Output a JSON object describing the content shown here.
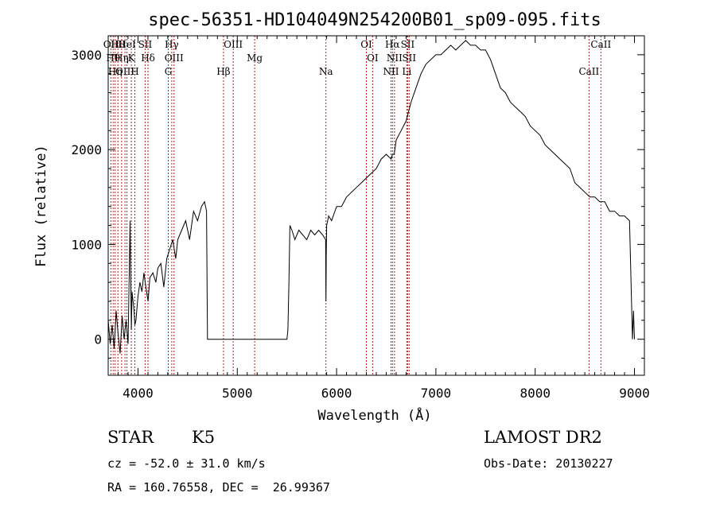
{
  "chart_data": {
    "type": "line",
    "title": "spec-56351-HD104049N254200B01_sp09-095.fits",
    "xlabel": "Wavelength (Å)",
    "ylabel": "Flux (relative)",
    "xlim": [
      3700,
      9100
    ],
    "ylim": [
      -380,
      3200
    ],
    "x_ticks": [
      4000,
      5000,
      6000,
      7000,
      8000,
      9000
    ],
    "y_ticks": [
      0,
      1000,
      2000,
      3000
    ],
    "grid": false,
    "line_color": "#000000",
    "marker_color": "#b22222",
    "series": [
      {
        "x": [
          3700,
          3720,
          3740,
          3760,
          3780,
          3800,
          3820,
          3840,
          3860,
          3880,
          3900,
          3920,
          3933,
          3940,
          3960,
          3968,
          3980,
          4000,
          4020,
          4040,
          4060,
          4080,
          4101,
          4120,
          4150,
          4180,
          4200,
          4230,
          4260,
          4290,
          4320,
          4350,
          4380,
          4400,
          4440,
          4480,
          4520,
          4560,
          4600,
          4640,
          4670,
          4690,
          4700,
          4710,
          4800,
          4900,
          5000,
          5100,
          5200,
          5300,
          5400,
          5500,
          5510,
          5520,
          5530,
          5550,
          5580,
          5620,
          5660,
          5700,
          5740,
          5780,
          5820,
          5860,
          5890,
          5893,
          5896,
          5900,
          5920,
          5950,
          6000,
          6050,
          6100,
          6150,
          6200,
          6250,
          6300,
          6350,
          6400,
          6450,
          6500,
          6550,
          6563,
          6580,
          6600,
          6650,
          6700,
          6750,
          6800,
          6850,
          6900,
          6950,
          7000,
          7050,
          7100,
          7150,
          7200,
          7250,
          7300,
          7350,
          7400,
          7450,
          7500,
          7550,
          7600,
          7650,
          7700,
          7750,
          7800,
          7850,
          7900,
          7950,
          8000,
          8050,
          8100,
          8150,
          8200,
          8250,
          8300,
          8350,
          8400,
          8450,
          8500,
          8550,
          8600,
          8650,
          8700,
          8750,
          8800,
          8850,
          8900,
          8950,
          8980,
          8990,
          9000
        ],
        "y": [
          200,
          -50,
          150,
          -100,
          300,
          50,
          -150,
          250,
          0,
          200,
          -50,
          1250,
          100,
          500,
          300,
          150,
          200,
          450,
          600,
          500,
          700,
          550,
          400,
          650,
          700,
          600,
          750,
          800,
          550,
          850,
          950,
          1050,
          850,
          1050,
          1150,
          1250,
          1050,
          1350,
          1250,
          1400,
          1450,
          1350,
          0,
          0,
          0,
          0,
          0,
          0,
          0,
          0,
          0,
          0,
          100,
          600,
          1200,
          1150,
          1050,
          1150,
          1100,
          1050,
          1150,
          1100,
          1150,
          1100,
          1050,
          400,
          900,
          1200,
          1300,
          1250,
          1400,
          1400,
          1500,
          1550,
          1600,
          1650,
          1700,
          1750,
          1800,
          1900,
          1950,
          1900,
          1950,
          1950,
          2100,
          2200,
          2300,
          2500,
          2650,
          2800,
          2900,
          2950,
          3000,
          3000,
          3050,
          3100,
          3050,
          3100,
          3150,
          3100,
          3100,
          3050,
          3050,
          2950,
          2800,
          2650,
          2600,
          2500,
          2450,
          2400,
          2350,
          2250,
          2200,
          2150,
          2050,
          2000,
          1950,
          1900,
          1850,
          1800,
          1650,
          1600,
          1550,
          1500,
          1500,
          1450,
          1450,
          1350,
          1350,
          1300,
          1300,
          1250,
          0,
          300,
          0
        ]
      }
    ],
    "lines": [
      {
        "x": 3727,
        "label": "OII"
      },
      {
        "x": 3750,
        "label": "Hθ"
      },
      {
        "x": 3770,
        "label": "Hη"
      },
      {
        "x": 3798,
        "label": "Hθ"
      },
      {
        "x": 3835,
        "label": "Hη"
      },
      {
        "x": 3869,
        "label": "OIII"
      },
      {
        "x": 3889,
        "label": "HeI"
      },
      {
        "x": 3933,
        "label": "K"
      },
      {
        "x": 3968,
        "label": "H"
      },
      {
        "x": 4072,
        "label": "SII"
      },
      {
        "x": 4101,
        "label": "Hδ"
      },
      {
        "x": 4305,
        "label": "G"
      },
      {
        "x": 4340,
        "label": "Hγ"
      },
      {
        "x": 4363,
        "label": "OIII"
      },
      {
        "x": 4861,
        "label": "Hβ"
      },
      {
        "x": 4959,
        "label": "OIII"
      },
      {
        "x": 5175,
        "label": "Mg"
      },
      {
        "x": 5893,
        "label": "Na"
      },
      {
        "x": 6300,
        "label": "OI"
      },
      {
        "x": 6363,
        "label": "OI"
      },
      {
        "x": 6548,
        "label": "NII"
      },
      {
        "x": 6563,
        "label": "Hα"
      },
      {
        "x": 6583,
        "label": "NII"
      },
      {
        "x": 6707,
        "label": "Li"
      },
      {
        "x": 6716,
        "label": "SII"
      },
      {
        "x": 6731,
        "label": "SII"
      },
      {
        "x": 8542,
        "label": "CaII"
      },
      {
        "x": 8662,
        "label": "CaII"
      }
    ]
  },
  "info": {
    "object_class": "STAR",
    "subclass": "K5",
    "survey": "LAMOST DR2",
    "cz": "cz = -52.0 ± 31.0 km/s",
    "obs_date": "Obs-Date: 20130227",
    "coords": "RA = 160.76558, DEC =  26.99367"
  }
}
